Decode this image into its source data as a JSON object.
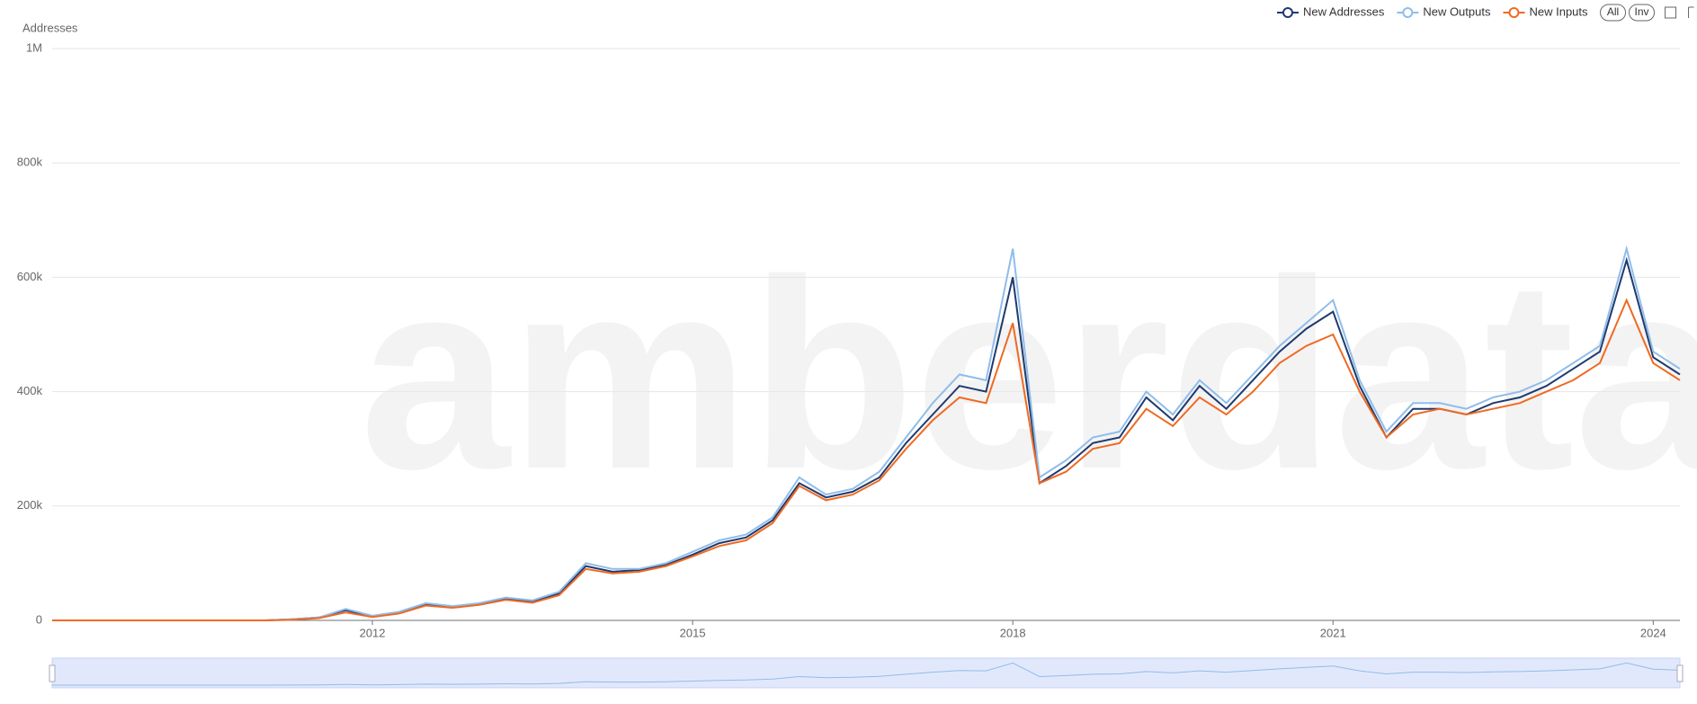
{
  "chart_data": {
    "type": "line",
    "watermark": "amberdata",
    "y_label": "Addresses",
    "controls": [
      "All",
      "Inv"
    ],
    "x": [
      2009.0,
      2009.25,
      2009.5,
      2009.75,
      2010.0,
      2010.25,
      2010.5,
      2010.75,
      2011.0,
      2011.25,
      2011.5,
      2011.75,
      2012.0,
      2012.25,
      2012.5,
      2012.75,
      2013.0,
      2013.25,
      2013.5,
      2013.75,
      2014.0,
      2014.25,
      2014.5,
      2014.75,
      2015.0,
      2015.25,
      2015.5,
      2015.75,
      2016.0,
      2016.25,
      2016.5,
      2016.75,
      2017.0,
      2017.25,
      2017.5,
      2017.75,
      2018.0,
      2018.25,
      2018.5,
      2018.75,
      2019.0,
      2019.25,
      2019.5,
      2019.75,
      2020.0,
      2020.25,
      2020.5,
      2020.75,
      2021.0,
      2021.25,
      2021.5,
      2021.75,
      2022.0,
      2022.25,
      2022.5,
      2022.75,
      2023.0,
      2023.25,
      2023.5,
      2023.75,
      2024.0,
      2024.25
    ],
    "series": [
      {
        "name": "New Addresses",
        "color": "#1f3a6e",
        "values": [
          0,
          0,
          0,
          0,
          0,
          0,
          0,
          0,
          0,
          2000,
          5000,
          18000,
          7000,
          14000,
          28000,
          24000,
          28000,
          38000,
          33000,
          47000,
          95000,
          85000,
          88000,
          97000,
          115000,
          135000,
          145000,
          175000,
          240000,
          215000,
          225000,
          250000,
          310000,
          360000,
          410000,
          400000,
          600000,
          240000,
          270000,
          310000,
          320000,
          390000,
          350000,
          410000,
          370000,
          420000,
          470000,
          510000,
          540000,
          410000,
          320000,
          370000,
          370000,
          360000,
          380000,
          390000,
          410000,
          440000,
          470000,
          630000,
          460000,
          430000
        ]
      },
      {
        "name": "New Outputs",
        "color": "#8fbdea",
        "values": [
          0,
          0,
          0,
          0,
          0,
          0,
          0,
          0,
          0,
          2000,
          5000,
          20000,
          8000,
          15000,
          30000,
          25000,
          30000,
          40000,
          35000,
          50000,
          100000,
          90000,
          90000,
          100000,
          120000,
          140000,
          150000,
          180000,
          250000,
          220000,
          230000,
          260000,
          320000,
          380000,
          430000,
          420000,
          650000,
          250000,
          280000,
          320000,
          330000,
          400000,
          360000,
          420000,
          380000,
          430000,
          480000,
          520000,
          560000,
          420000,
          330000,
          380000,
          380000,
          370000,
          390000,
          400000,
          420000,
          450000,
          480000,
          650000,
          470000,
          440000
        ]
      },
      {
        "name": "New Inputs",
        "color": "#f06a22",
        "values": [
          0,
          0,
          0,
          0,
          0,
          0,
          0,
          0,
          0,
          1000,
          4000,
          14000,
          6000,
          12000,
          26000,
          22000,
          27000,
          36000,
          31000,
          44000,
          90000,
          82000,
          85000,
          95000,
          112000,
          130000,
          140000,
          170000,
          235000,
          210000,
          220000,
          245000,
          300000,
          350000,
          390000,
          380000,
          520000,
          240000,
          260000,
          300000,
          310000,
          370000,
          340000,
          390000,
          360000,
          400000,
          450000,
          480000,
          500000,
          400000,
          320000,
          360000,
          370000,
          360000,
          370000,
          380000,
          400000,
          420000,
          450000,
          560000,
          450000,
          420000
        ]
      }
    ],
    "xlim": [
      2009.0,
      2024.25
    ],
    "xticks": [
      2012,
      2015,
      2018,
      2021,
      2024
    ],
    "ylim": [
      0,
      1000000
    ],
    "yticks": [
      {
        "value": 0,
        "label": "0"
      },
      {
        "value": 200000,
        "label": "200k"
      },
      {
        "value": 400000,
        "label": "400k"
      },
      {
        "value": 600000,
        "label": "600k"
      },
      {
        "value": 800000,
        "label": "800k"
      },
      {
        "value": 1000000,
        "label": "1M"
      }
    ],
    "grid": true
  }
}
